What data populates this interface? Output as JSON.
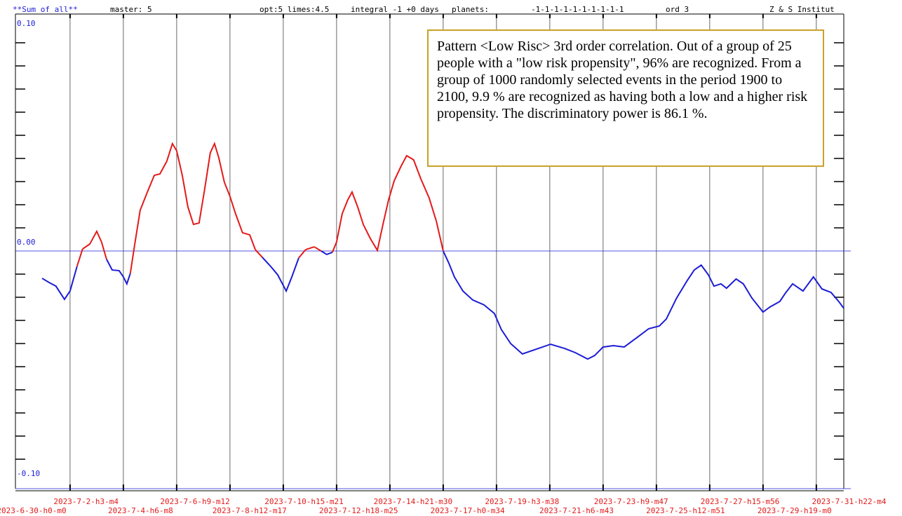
{
  "chart_data": {
    "type": "line",
    "header": [
      "**Sum of all**",
      "master: 5",
      "opt:5 limes:4.5",
      "integral -1 +0 days",
      "planets:",
      "-1-1-1-1-1-1-1-1-1-1",
      "ord 3",
      "Z & S Institut"
    ],
    "annotation": "Pattern <Low Risc> 3rd order correlation. Out of a group of 25 people with a \"low risk propensity\", 96% are recognized. From a group of 1000 randomly selected events in the period 1900 to 2100, 9.9 % are recognized as having both a low and a higher risk propensity. The discriminatory power is 86.1 %.",
    "x_labels": [
      "2023-6-30-h0-m0",
      "2023-7-2-h3-m4",
      "2023-7-4-h6-m8",
      "2023-7-6-h9-m12",
      "2023-7-8-h12-m17",
      "2023-7-10-h15-m21",
      "2023-7-12-h18-m25",
      "2023-7-14-h21-m30",
      "2023-7-17-h0-m34",
      "2023-7-19-h3-m38",
      "2023-7-21-h6-m43",
      "2023-7-23-h9-m47",
      "2023-7-25-h12-m51",
      "2023-7-27-h15-m56",
      "2023-7-29-h19-m0",
      "2023-7-31-h22-m4"
    ],
    "xlim": [
      -0.05,
      31.03
    ],
    "xticks": [
      2,
      4,
      6,
      8,
      10,
      12,
      14,
      16,
      18,
      20,
      22,
      24,
      26,
      28,
      30
    ],
    "ylim": [
      -0.1,
      0.1
    ],
    "yticks": [
      {
        "value": 0.1,
        "label": "0.10"
      },
      {
        "value": 0,
        "label": "0.00"
      },
      {
        "value": -0.1,
        "label": "-0.10"
      }
    ],
    "yticks_minor": [
      0.09,
      0.08,
      0.07,
      0.06,
      0.05,
      0.04,
      0.03,
      0.02,
      0.01,
      -0.01,
      -0.02,
      -0.03,
      -0.04,
      -0.05,
      -0.06,
      -0.07,
      -0.08,
      -0.09
    ],
    "color": "#1c1cd6",
    "color_above_zero": "#e31a1a",
    "x": [
      0.95,
      1.21,
      1.47,
      1.79,
      2,
      2.26,
      2.47,
      2.74,
      3,
      3.18,
      3.37,
      3.58,
      3.84,
      4,
      4.13,
      4.26,
      4.42,
      4.63,
      4.89,
      5.16,
      5.37,
      5.63,
      5.84,
      6,
      6.21,
      6.42,
      6.63,
      6.84,
      7.05,
      7.26,
      7.42,
      7.58,
      7.79,
      8,
      8.21,
      8.47,
      8.74,
      8.95,
      9.21,
      9.53,
      9.79,
      10.11,
      10.32,
      10.58,
      10.84,
      11.16,
      11.42,
      11.63,
      11.84,
      12,
      12.21,
      12.42,
      12.58,
      12.79,
      13,
      13.26,
      13.53,
      13.74,
      13.95,
      14.16,
      14.42,
      14.63,
      14.89,
      15.16,
      15.47,
      15.74,
      16,
      16.21,
      16.42,
      16.74,
      17.11,
      17.53,
      17.92,
      18.18,
      18.53,
      18.97,
      19.5,
      20.03,
      20.55,
      20.95,
      21.42,
      21.68,
      22,
      22.39,
      22.79,
      23.32,
      23.71,
      24.11,
      24.37,
      24.76,
      25.16,
      25.42,
      25.68,
      25.95,
      26.16,
      26.42,
      26.63,
      26.99,
      27.26,
      27.58,
      28,
      28.26,
      28.63,
      28.84,
      29.11,
      29.5,
      29.89,
      30.21,
      30.55,
      30.84,
      31.03
    ],
    "values": [
      -0.0118,
      -0.0136,
      -0.0152,
      -0.0209,
      -0.0173,
      -0.0067,
      0.0009,
      0.003,
      0.0085,
      0.0039,
      -0.0036,
      -0.0082,
      -0.0085,
      -0.0112,
      -0.0142,
      -0.0097,
      0.0024,
      0.0176,
      0.0252,
      0.0327,
      0.0333,
      0.0388,
      0.0464,
      0.0433,
      0.0327,
      0.0191,
      0.0115,
      0.0121,
      0.0267,
      0.0424,
      0.0464,
      0.0403,
      0.0297,
      0.0236,
      0.0161,
      0.0079,
      0.007,
      0.0006,
      -0.0027,
      -0.0067,
      -0.0103,
      -0.0173,
      -0.0112,
      -0.003,
      0.0006,
      0.0018,
      0,
      -0.0015,
      -0.0006,
      0.0039,
      0.0161,
      0.0221,
      0.0255,
      0.0191,
      0.0115,
      0.0055,
      0.0003,
      0.0115,
      0.0221,
      0.0303,
      0.0367,
      0.0412,
      0.0394,
      0.0312,
      0.023,
      0.013,
      0,
      -0.0052,
      -0.0112,
      -0.0173,
      -0.0212,
      -0.0233,
      -0.027,
      -0.0339,
      -0.04,
      -0.0445,
      -0.0424,
      -0.0403,
      -0.0421,
      -0.0439,
      -0.0467,
      -0.0452,
      -0.0415,
      -0.0409,
      -0.0415,
      -0.037,
      -0.0336,
      -0.0324,
      -0.0294,
      -0.0203,
      -0.0127,
      -0.0082,
      -0.0061,
      -0.0103,
      -0.0152,
      -0.0142,
      -0.0161,
      -0.0121,
      -0.0142,
      -0.0203,
      -0.0264,
      -0.0242,
      -0.0218,
      -0.0182,
      -0.0142,
      -0.0173,
      -0.0112,
      -0.0164,
      -0.0179,
      -0.0218,
      -0.0248
    ]
  }
}
